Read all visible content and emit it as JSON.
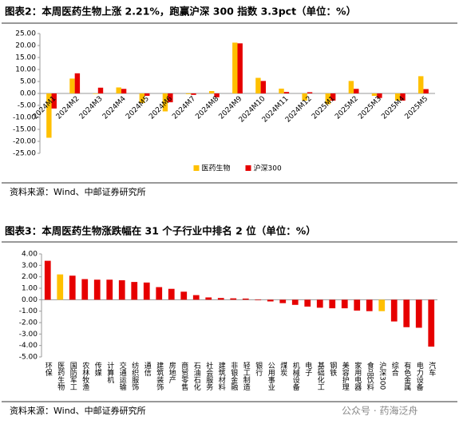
{
  "chart_data": [
    {
      "type": "bar",
      "title": "图表2：本周医药生物上涨 2.21%，跑赢沪深 300 指数 3.3pct（单位：%）",
      "source": "资料来源：Wind、中邮证券研究所",
      "categories": [
        "2024M1",
        "2024M2",
        "2024M3",
        "2024M4",
        "2024M5",
        "2024M6",
        "2024M7",
        "2024M8",
        "2024M9",
        "2024M10",
        "2024M11",
        "2024M12",
        "2025M1",
        "2025M2",
        "2025M3",
        "2025M4",
        "2025M5"
      ],
      "series": [
        {
          "name": "医药生物",
          "color": "#ffc000",
          "values": [
            -18.5,
            6.2,
            -0.2,
            2.5,
            -4.0,
            -7.5,
            -0.3,
            1.0,
            21.2,
            6.5,
            2.0,
            -3.0,
            -4.5,
            5.2,
            -1.0,
            -3.0,
            7.2
          ]
        },
        {
          "name": "沪深300",
          "color": "#e60000",
          "values": [
            -6.3,
            8.4,
            2.4,
            1.9,
            -1.0,
            -3.7,
            -0.6,
            -1.6,
            20.9,
            5.2,
            0.6,
            0.5,
            -3.0,
            1.9,
            -1.9,
            -3.0,
            1.8
          ]
        }
      ],
      "ylim": [
        -25,
        25
      ],
      "yticks": [
        {
          "value": -25,
          "label": "-25.00"
        },
        {
          "value": -20,
          "label": "-20.00"
        },
        {
          "value": -15,
          "label": "-15.00"
        },
        {
          "value": -10,
          "label": "-10.00"
        },
        {
          "value": -5,
          "label": "-5.00"
        },
        {
          "value": 0,
          "label": "0.00"
        },
        {
          "value": 5,
          "label": "5.00"
        },
        {
          "value": 10,
          "label": "10.00"
        },
        {
          "value": 15,
          "label": "15.00"
        },
        {
          "value": 20,
          "label": "20.00"
        },
        {
          "value": 25,
          "label": "25.00"
        }
      ],
      "legend": "bottom"
    },
    {
      "type": "bar",
      "title": "图表3：本周医药生物涨跌幅在 31 个子行业中排名 2 位（单位：%）",
      "source": "资料来源：Wind、中邮证券研究所",
      "categories": [
        "环保",
        "医药生物",
        "国防军工",
        "农林牧渔",
        "传媒",
        "计算机",
        "交通运输",
        "纺织服饰",
        "通信",
        "建筑装饰",
        "房地产",
        "商贸零售",
        "石油石化",
        "社会服务",
        "建筑材料",
        "非银金融",
        "轻工制造",
        "银行",
        "公用事业",
        "煤炭",
        "机械设备",
        "电子",
        "基础化工",
        "钢铁",
        "美容护理",
        "家用电器",
        "食品饮料",
        "沪深300",
        "综合",
        "有色金属",
        "电力设备",
        "汽车"
      ],
      "values": [
        3.4,
        2.21,
        2.1,
        1.8,
        1.75,
        1.75,
        1.7,
        1.55,
        1.5,
        1.1,
        0.95,
        0.7,
        0.4,
        0.2,
        0.15,
        0.12,
        0.1,
        -0.05,
        -0.15,
        -0.3,
        -0.45,
        -0.6,
        -0.7,
        -0.75,
        -0.75,
        -0.95,
        -1.0,
        -1.0,
        -1.9,
        -2.4,
        -2.45,
        -4.1
      ],
      "colors": [
        "#e60000",
        "#ffc000",
        "#e60000",
        "#e60000",
        "#e60000",
        "#e60000",
        "#e60000",
        "#e60000",
        "#e60000",
        "#e60000",
        "#e60000",
        "#e60000",
        "#e60000",
        "#e60000",
        "#e60000",
        "#e60000",
        "#e60000",
        "#e60000",
        "#e60000",
        "#e60000",
        "#e60000",
        "#e60000",
        "#e60000",
        "#e60000",
        "#e60000",
        "#e60000",
        "#e60000",
        "#ffc000",
        "#e60000",
        "#e60000",
        "#e60000",
        "#e60000"
      ],
      "ylim": [
        -5,
        4
      ],
      "yticks": [
        {
          "value": -5,
          "label": "-5.00"
        },
        {
          "value": -4,
          "label": "-4.00"
        },
        {
          "value": -3,
          "label": "-3.00"
        },
        {
          "value": -2,
          "label": "-2.00"
        },
        {
          "value": -1,
          "label": "-1.00"
        },
        {
          "value": 0,
          "label": "0.00"
        },
        {
          "value": 1,
          "label": "1.00"
        },
        {
          "value": 2,
          "label": "2.00"
        },
        {
          "value": 3,
          "label": "3.00"
        },
        {
          "value": 4,
          "label": "4.00"
        }
      ]
    }
  ],
  "watermark": "公众号 · 药海泛舟"
}
